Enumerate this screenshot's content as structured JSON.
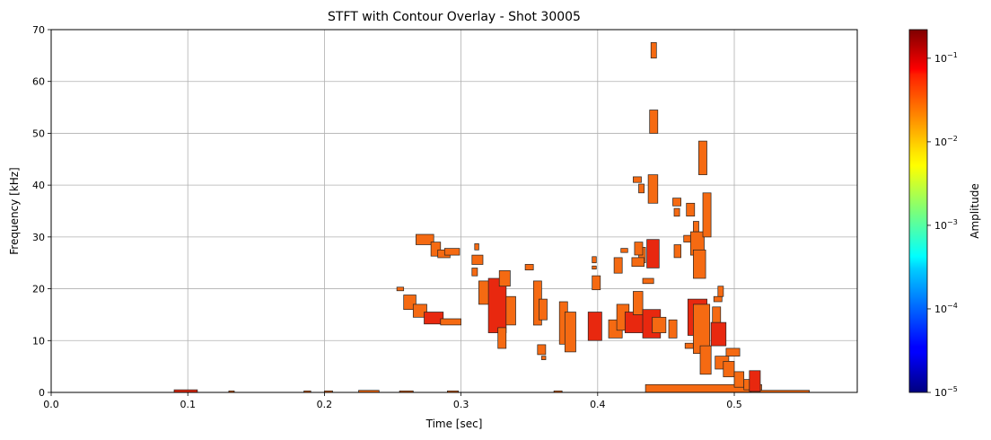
{
  "chart_data": {
    "type": "heatmap",
    "title": "STFT with Contour Overlay - Shot 30005",
    "xlabel": "Time [sec]",
    "ylabel": "Frequency [kHz]",
    "xlim": [
      0.0,
      0.59
    ],
    "ylim": [
      0,
      70
    ],
    "grid": true,
    "x_ticks": [
      "0.0",
      "0.1",
      "0.2",
      "0.3",
      "0.4",
      "0.5"
    ],
    "x_tick_values": [
      0.0,
      0.1,
      0.2,
      0.3,
      0.4,
      0.5
    ],
    "y_ticks": [
      "0",
      "10",
      "20",
      "30",
      "40",
      "50",
      "60",
      "70"
    ],
    "y_tick_values": [
      0,
      10,
      20,
      30,
      40,
      50,
      60,
      70
    ],
    "colorbar": {
      "label": "Amplitude",
      "scale": "log",
      "colormap": "jet",
      "range": [
        1e-05,
        0.22
      ],
      "ticks": [
        {
          "value": 1e-05,
          "base": "10",
          "exp": "−5"
        },
        {
          "value": 0.0001,
          "base": "10",
          "exp": "−4"
        },
        {
          "value": 0.001,
          "base": "10",
          "exp": "−3"
        },
        {
          "value": 0.01,
          "base": "10",
          "exp": "−2"
        },
        {
          "value": 0.1,
          "base": "10",
          "exp": "−1"
        }
      ]
    },
    "regions": [
      {
        "t0": 0.09,
        "t1": 0.107,
        "f0": 0,
        "f1": 0.5,
        "amp": "high"
      },
      {
        "t0": 0.13,
        "t1": 0.134,
        "f0": 0,
        "f1": 0.3,
        "amp": "mid"
      },
      {
        "t0": 0.185,
        "t1": 0.19,
        "f0": 0,
        "f1": 0.3,
        "amp": "mid"
      },
      {
        "t0": 0.2,
        "t1": 0.206,
        "f0": 0,
        "f1": 0.3,
        "amp": "mid"
      },
      {
        "t0": 0.225,
        "t1": 0.24,
        "f0": 0,
        "f1": 0.4,
        "amp": "mid"
      },
      {
        "t0": 0.255,
        "t1": 0.265,
        "f0": 0,
        "f1": 0.3,
        "amp": "mid"
      },
      {
        "t0": 0.29,
        "t1": 0.298,
        "f0": 0,
        "f1": 0.3,
        "amp": "mid"
      },
      {
        "t0": 0.368,
        "t1": 0.374,
        "f0": 0,
        "f1": 0.3,
        "amp": "mid"
      },
      {
        "t0": 0.435,
        "t1": 0.52,
        "f0": 0,
        "f1": 1.5,
        "amp": "mid"
      },
      {
        "t0": 0.512,
        "t1": 0.555,
        "f0": 0,
        "f1": 0.4,
        "amp": "mid"
      },
      {
        "t0": 0.253,
        "t1": 0.258,
        "f0": 19.6,
        "f1": 20.3,
        "amp": "mid"
      },
      {
        "t0": 0.258,
        "t1": 0.267,
        "f0": 16.0,
        "f1": 18.8,
        "amp": "mid"
      },
      {
        "t0": 0.265,
        "t1": 0.275,
        "f0": 14.5,
        "f1": 17.0,
        "amp": "mid"
      },
      {
        "t0": 0.273,
        "t1": 0.287,
        "f0": 13.2,
        "f1": 15.5,
        "amp": "high"
      },
      {
        "t0": 0.285,
        "t1": 0.3,
        "f0": 13.0,
        "f1": 14.2,
        "amp": "mid"
      },
      {
        "t0": 0.267,
        "t1": 0.28,
        "f0": 28.5,
        "f1": 30.5,
        "amp": "mid"
      },
      {
        "t0": 0.278,
        "t1": 0.285,
        "f0": 26.3,
        "f1": 29.0,
        "amp": "mid"
      },
      {
        "t0": 0.283,
        "t1": 0.292,
        "f0": 26.0,
        "f1": 27.5,
        "amp": "mid"
      },
      {
        "t0": 0.288,
        "t1": 0.299,
        "f0": 26.5,
        "f1": 27.8,
        "amp": "mid"
      },
      {
        "t0": 0.31,
        "t1": 0.313,
        "f0": 27.5,
        "f1": 28.7,
        "amp": "mid"
      },
      {
        "t0": 0.308,
        "t1": 0.316,
        "f0": 24.7,
        "f1": 26.5,
        "amp": "mid"
      },
      {
        "t0": 0.308,
        "t1": 0.312,
        "f0": 22.5,
        "f1": 24.0,
        "amp": "mid"
      },
      {
        "t0": 0.313,
        "t1": 0.322,
        "f0": 17.0,
        "f1": 21.5,
        "amp": "mid"
      },
      {
        "t0": 0.32,
        "t1": 0.333,
        "f0": 11.5,
        "f1": 22.0,
        "amp": "high"
      },
      {
        "t0": 0.328,
        "t1": 0.336,
        "f0": 20.5,
        "f1": 23.5,
        "amp": "mid"
      },
      {
        "t0": 0.327,
        "t1": 0.333,
        "f0": 8.5,
        "f1": 12.5,
        "amp": "mid"
      },
      {
        "t0": 0.333,
        "t1": 0.34,
        "f0": 13.0,
        "f1": 18.5,
        "amp": "mid"
      },
      {
        "t0": 0.347,
        "t1": 0.353,
        "f0": 23.6,
        "f1": 24.7,
        "amp": "mid"
      },
      {
        "t0": 0.353,
        "t1": 0.359,
        "f0": 13.0,
        "f1": 21.5,
        "amp": "mid"
      },
      {
        "t0": 0.357,
        "t1": 0.363,
        "f0": 14.0,
        "f1": 18.0,
        "amp": "mid"
      },
      {
        "t0": 0.356,
        "t1": 0.362,
        "f0": 7.3,
        "f1": 9.2,
        "amp": "mid"
      },
      {
        "t0": 0.359,
        "t1": 0.362,
        "f0": 6.3,
        "f1": 7.0,
        "amp": "mid"
      },
      {
        "t0": 0.372,
        "t1": 0.378,
        "f0": 9.3,
        "f1": 17.5,
        "amp": "mid"
      },
      {
        "t0": 0.376,
        "t1": 0.384,
        "f0": 7.8,
        "f1": 15.5,
        "amp": "mid"
      },
      {
        "t0": 0.396,
        "t1": 0.399,
        "f0": 25.0,
        "f1": 26.2,
        "amp": "mid"
      },
      {
        "t0": 0.396,
        "t1": 0.399,
        "f0": 23.8,
        "f1": 24.4,
        "amp": "mid"
      },
      {
        "t0": 0.396,
        "t1": 0.402,
        "f0": 19.8,
        "f1": 22.5,
        "amp": "mid"
      },
      {
        "t0": 0.393,
        "t1": 0.403,
        "f0": 10.0,
        "f1": 15.5,
        "amp": "high"
      },
      {
        "t0": 0.412,
        "t1": 0.418,
        "f0": 23.0,
        "f1": 26.0,
        "amp": "mid"
      },
      {
        "t0": 0.417,
        "t1": 0.422,
        "f0": 27.0,
        "f1": 27.8,
        "amp": "mid"
      },
      {
        "t0": 0.408,
        "t1": 0.418,
        "f0": 10.5,
        "f1": 14.0,
        "amp": "mid"
      },
      {
        "t0": 0.414,
        "t1": 0.423,
        "f0": 12.0,
        "f1": 17.0,
        "amp": "mid"
      },
      {
        "t0": 0.42,
        "t1": 0.435,
        "f0": 11.5,
        "f1": 15.5,
        "amp": "high"
      },
      {
        "t0": 0.426,
        "t1": 0.433,
        "f0": 15.0,
        "f1": 19.5,
        "amp": "mid"
      },
      {
        "t0": 0.433,
        "t1": 0.446,
        "f0": 10.5,
        "f1": 16.0,
        "amp": "high"
      },
      {
        "t0": 0.436,
        "t1": 0.445,
        "f0": 24.0,
        "f1": 29.5,
        "amp": "high"
      },
      {
        "t0": 0.433,
        "t1": 0.441,
        "f0": 21.0,
        "f1": 22.0,
        "amp": "mid"
      },
      {
        "t0": 0.44,
        "t1": 0.45,
        "f0": 11.5,
        "f1": 14.5,
        "amp": "mid"
      },
      {
        "t0": 0.43,
        "t1": 0.435,
        "f0": 25.0,
        "f1": 28.0,
        "amp": "mid"
      },
      {
        "t0": 0.425,
        "t1": 0.434,
        "f0": 24.3,
        "f1": 26.0,
        "amp": "mid"
      },
      {
        "t0": 0.427,
        "t1": 0.433,
        "f0": 26.5,
        "f1": 29.0,
        "amp": "mid"
      },
      {
        "t0": 0.426,
        "t1": 0.432,
        "f0": 40.5,
        "f1": 41.6,
        "amp": "mid"
      },
      {
        "t0": 0.43,
        "t1": 0.434,
        "f0": 38.5,
        "f1": 40.2,
        "amp": "mid"
      },
      {
        "t0": 0.437,
        "t1": 0.444,
        "f0": 36.5,
        "f1": 42.0,
        "amp": "mid"
      },
      {
        "t0": 0.438,
        "t1": 0.444,
        "f0": 50.0,
        "f1": 54.5,
        "amp": "mid"
      },
      {
        "t0": 0.439,
        "t1": 0.443,
        "f0": 64.5,
        "f1": 67.5,
        "amp": "mid"
      },
      {
        "t0": 0.455,
        "t1": 0.461,
        "f0": 36.0,
        "f1": 37.5,
        "amp": "mid"
      },
      {
        "t0": 0.456,
        "t1": 0.46,
        "f0": 34.0,
        "f1": 35.5,
        "amp": "mid"
      },
      {
        "t0": 0.452,
        "t1": 0.458,
        "f0": 10.5,
        "f1": 14.0,
        "amp": "mid"
      },
      {
        "t0": 0.456,
        "t1": 0.461,
        "f0": 26.0,
        "f1": 28.5,
        "amp": "mid"
      },
      {
        "t0": 0.468,
        "t1": 0.478,
        "f0": 26.5,
        "f1": 31.0,
        "amp": "mid"
      },
      {
        "t0": 0.47,
        "t1": 0.479,
        "f0": 22.0,
        "f1": 27.5,
        "amp": "mid"
      },
      {
        "t0": 0.466,
        "t1": 0.48,
        "f0": 11.0,
        "f1": 18.0,
        "amp": "high"
      },
      {
        "t0": 0.47,
        "t1": 0.482,
        "f0": 7.5,
        "f1": 17.0,
        "amp": "mid"
      },
      {
        "t0": 0.465,
        "t1": 0.471,
        "f0": 34.0,
        "f1": 36.5,
        "amp": "mid"
      },
      {
        "t0": 0.47,
        "t1": 0.474,
        "f0": 31.0,
        "f1": 33.0,
        "amp": "mid"
      },
      {
        "t0": 0.474,
        "t1": 0.48,
        "f0": 42.0,
        "f1": 48.5,
        "amp": "mid"
      },
      {
        "t0": 0.477,
        "t1": 0.483,
        "f0": 30.0,
        "f1": 38.5,
        "amp": "mid"
      },
      {
        "t0": 0.463,
        "t1": 0.468,
        "f0": 29.0,
        "f1": 30.3,
        "amp": "mid"
      },
      {
        "t0": 0.475,
        "t1": 0.483,
        "f0": 3.5,
        "f1": 9.0,
        "amp": "mid"
      },
      {
        "t0": 0.464,
        "t1": 0.47,
        "f0": 8.5,
        "f1": 9.5,
        "amp": "mid"
      },
      {
        "t0": 0.483,
        "t1": 0.494,
        "f0": 9.0,
        "f1": 13.5,
        "amp": "high"
      },
      {
        "t0": 0.484,
        "t1": 0.49,
        "f0": 13.5,
        "f1": 16.5,
        "amp": "mid"
      },
      {
        "t0": 0.485,
        "t1": 0.491,
        "f0": 17.5,
        "f1": 18.5,
        "amp": "mid"
      },
      {
        "t0": 0.488,
        "t1": 0.492,
        "f0": 18.5,
        "f1": 20.5,
        "amp": "mid"
      },
      {
        "t0": 0.486,
        "t1": 0.496,
        "f0": 4.5,
        "f1": 7.0,
        "amp": "mid"
      },
      {
        "t0": 0.492,
        "t1": 0.5,
        "f0": 3.0,
        "f1": 6.0,
        "amp": "mid"
      },
      {
        "t0": 0.494,
        "t1": 0.504,
        "f0": 7.0,
        "f1": 8.5,
        "amp": "mid"
      },
      {
        "t0": 0.5,
        "t1": 0.507,
        "f0": 1.0,
        "f1": 4.0,
        "amp": "mid"
      },
      {
        "t0": 0.507,
        "t1": 0.512,
        "f0": 0.5,
        "f1": 2.5,
        "amp": "mid"
      },
      {
        "t0": 0.511,
        "t1": 0.519,
        "f0": 0.2,
        "f1": 4.2,
        "amp": "high"
      }
    ]
  }
}
